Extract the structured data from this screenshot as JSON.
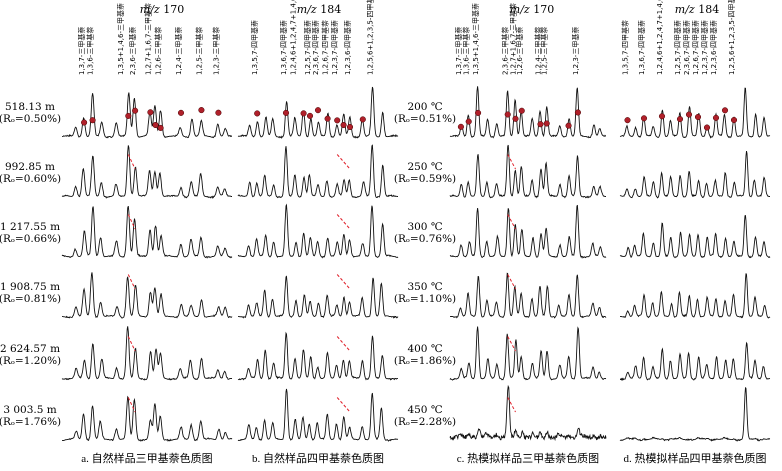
{
  "headers": [
    "m/z 170",
    "m/z 184",
    "m/z 170",
    "m/z 184"
  ],
  "captions": [
    "a. 自然样品三甲基萘色质图",
    "b. 自然样品四甲基萘色质图",
    "c. 热模拟样品三甲基萘色质图",
    "d. 热模拟样品四甲基萘色质图"
  ],
  "rows_natural": [
    {
      "depth": "518.13 m",
      "ro": "(Rₒ=0.50%)"
    },
    {
      "depth": "992.85 m",
      "ro": "(Rₒ=0.60%)"
    },
    {
      "depth": "1 217.55 m",
      "ro": "(Rₒ=0.66%)"
    },
    {
      "depth": "1 908.75 m",
      "ro": "(Rₒ=0.81%)"
    },
    {
      "depth": "2 624.57 m",
      "ro": "(Rₒ=1.20%)"
    },
    {
      "depth": "3 003.5 m",
      "ro": "(Rₒ=1.76%)"
    }
  ],
  "rows_thermal": [
    {
      "temp": "200 ℃",
      "ro": "(Rₒ=0.51%)"
    },
    {
      "temp": "250 ℃",
      "ro": "(Rₒ=0.59%)"
    },
    {
      "temp": "300 ℃",
      "ro": "(Rₒ=0.76%)"
    },
    {
      "temp": "350 ℃",
      "ro": "(Rₒ=1.10%)"
    },
    {
      "temp": "400 ℃",
      "ro": "(Rₒ=1.86%)"
    },
    {
      "temp": "450 ℃",
      "ro": "(Rₒ=2.28%)"
    }
  ],
  "peak_labels": {
    "tmn": [
      "1,3,7-三甲基萘",
      "1,3,6-三甲基萘",
      "1,3,5+1,4,6-三甲基萘",
      "2,3,6-三甲基萘",
      "1,2,7+1,6,7-三甲基萘",
      "1,2,6-三甲基萘",
      "1,2,4-三甲基萘",
      "1,2,5-三甲基萘",
      "1,2,3-三甲基萘"
    ],
    "temn": [
      "1,3,5,7-四甲基萘",
      "1,3,6,7-四甲基萘",
      "1,2,4,6+1,2,4,7+1,4,6,7-四甲基萘",
      "1,2,5,7-四甲基萘",
      "2,3,6,7-四甲基萘",
      "1,2,6,7-四甲基萘",
      "1,2,3,7-四甲基萘",
      "1,2,3,6-四甲基萘",
      "1,2,5,6+1,2,3,5-四甲基萘"
    ],
    "temn_thermal": [
      "1,3,5,7-四甲基萘",
      "1,3,6,7-四甲基萘",
      "1,2,4,6+1,2,4,7+1,4,6,7-四甲基萘",
      "1,2,5,7-四甲基萘",
      "2,3,6,7-四甲基萘",
      "1,2,6,7-四甲基萘",
      "1,2,3,7-四甲基萘",
      "1,2,3,6-四甲基萘",
      "1,2,5,6+1,2,3,5-四甲基萘"
    ]
  },
  "chart_data": {
    "type": "line",
    "panels": [
      {
        "id": "a",
        "mz": "170",
        "sample": "natural",
        "series": [
          "518.13 m",
          "992.85 m",
          "1 217.55 m",
          "1 908.75 m",
          "2 624.57 m",
          "3 003.5 m"
        ]
      },
      {
        "id": "b",
        "mz": "184",
        "sample": "natural",
        "series": [
          "518.13 m",
          "992.85 m",
          "1 217.55 m",
          "1 908.75 m",
          "2 624.57 m",
          "3 003.5 m"
        ]
      },
      {
        "id": "c",
        "mz": "170",
        "sample": "thermal",
        "series": [
          "200 ℃",
          "250 ℃",
          "300 ℃",
          "350 ℃",
          "400 ℃",
          "450 ℃"
        ]
      },
      {
        "id": "d",
        "mz": "184",
        "sample": "thermal",
        "series": [
          "200 ℃",
          "250 ℃",
          "300 ℃",
          "350 ℃",
          "400 ℃",
          "450 ℃"
        ]
      }
    ],
    "marker_color": "#b0202a",
    "trend_line_color": "#e0202a",
    "line_color": "#111111"
  }
}
